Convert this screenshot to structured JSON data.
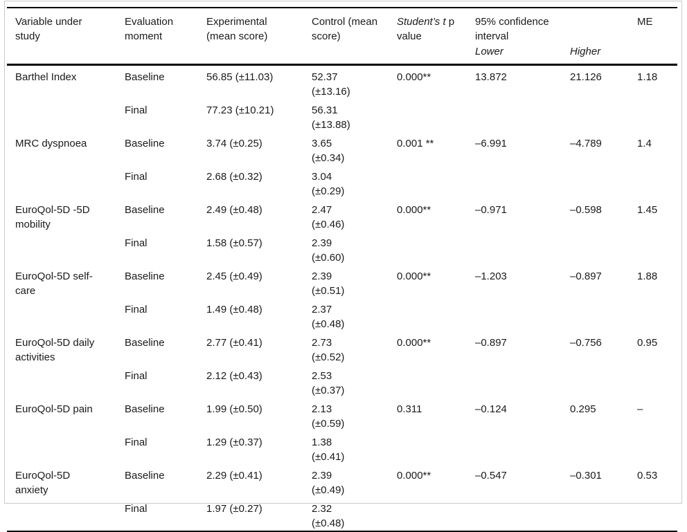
{
  "table": {
    "headers": {
      "variable": "Variable under study",
      "moment": "Evaluation moment",
      "experimental": "Experimental (mean score)",
      "control": "Control (mean score)",
      "pvalue_italic": "Student&#8217;s t",
      "pvalue_rest": " p value",
      "ci": "95% confidence interval",
      "ci_lower": "Lower",
      "ci_higher": "Higher",
      "me": "ME"
    },
    "rows": [
      {
        "variable": "Barthel Index",
        "baseline": {
          "moment": "Baseline",
          "experimental": "56.85 (±11.03)",
          "control_value": "52.37",
          "control_sd": "(±13.16)"
        },
        "final": {
          "moment": "Final",
          "experimental": "77.23 (±10.21)",
          "control_value": "56.31",
          "control_sd": "(±13.88)"
        },
        "p_value": "0.000**",
        "ci_lower": "13.872",
        "ci_higher": "21.126",
        "me": "1.18"
      },
      {
        "variable": "MRC dyspnoea",
        "baseline": {
          "moment": "Baseline",
          "experimental": "3.74 (±0.25)",
          "control_value": "3.65",
          "control_sd": "(±0.34)"
        },
        "final": {
          "moment": "Final",
          "experimental": "2.68 (±0.32)",
          "control_value": "3.04",
          "control_sd": "(±0.29)"
        },
        "p_value": "0.001 **",
        "ci_lower": "–6.991",
        "ci_higher": "–4.789",
        "me": "1.4"
      },
      {
        "variable": "EuroQol-5D -5D mobility",
        "baseline": {
          "moment": "Baseline",
          "experimental": "2.49 (±0.48)",
          "control_value": "2.47",
          "control_sd": "(±0.46)"
        },
        "final": {
          "moment": "Final",
          "experimental": "1.58 (±0.57)",
          "control_value": "2.39",
          "control_sd": "(±0.60)"
        },
        "p_value": "0.000**",
        "ci_lower": "–0.971",
        "ci_higher": "–0.598",
        "me": "1.45"
      },
      {
        "variable": "EuroQol-5D self-care",
        "baseline": {
          "moment": "Baseline",
          "experimental": "2.45 (±0.49)",
          "control_value": "2.39",
          "control_sd": "(±0.51)"
        },
        "final": {
          "moment": "Final",
          "experimental": "1.49 (±0.48)",
          "control_value": "2.37",
          "control_sd": "(±0.48)"
        },
        "p_value": "0.000**",
        "ci_lower": "–1.203",
        "ci_higher": "–0.897",
        "me": "1.88"
      },
      {
        "variable": "EuroQol-5D daily activities",
        "baseline": {
          "moment": "Baseline",
          "experimental": "2.77 (±0.41)",
          "control_value": "2.73",
          "control_sd": "(±0.52)"
        },
        "final": {
          "moment": "Final",
          "experimental": "2.12 (±0.43)",
          "control_value": "2.53",
          "control_sd": "(±0.37)"
        },
        "p_value": "0.000**",
        "ci_lower": "–0.897",
        "ci_higher": "–0.756",
        "me": "0.95"
      },
      {
        "variable": "EuroQol-5D pain",
        "baseline": {
          "moment": "Baseline",
          "experimental": "1.99 (±0.50)",
          "control_value": "2.13",
          "control_sd": "(±0.59)"
        },
        "final": {
          "moment": "Final",
          "experimental": "1.29 (±0.37)",
          "control_value": "1.38",
          "control_sd": "(±0.41)"
        },
        "p_value": "0.311",
        "ci_lower": "–0.124",
        "ci_higher": "0.295",
        "me": "–"
      },
      {
        "variable": "EuroQol-5D anxiety",
        "baseline": {
          "moment": "Baseline",
          "experimental": "2.29 (±0.41)",
          "control_value": "2.39",
          "control_sd": "(±0.49)"
        },
        "final": {
          "moment": "Final",
          "experimental": "1.97 (±0.27)",
          "control_value": "2.32",
          "control_sd": "(±0.48)"
        },
        "p_value": "0.000**",
        "ci_lower": "–0.547",
        "ci_higher": "–0.301",
        "me": "0.53"
      }
    ]
  }
}
